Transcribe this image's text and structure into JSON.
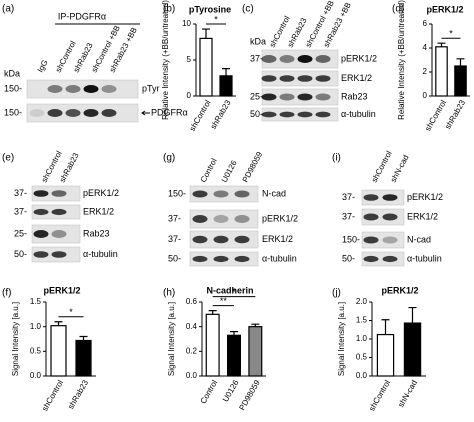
{
  "blots": [
    {
      "panel": "(a)",
      "header": "IP-PDGFRα",
      "kda": "kDa",
      "lanes": [
        "IgG",
        "shControl",
        "shRab23",
        "shControl +BB",
        "shRab23 +BB"
      ],
      "rows": [
        {
          "mw": "150-",
          "label": "pTyr"
        },
        {
          "mw": "150-",
          "label": "PDGFRα"
        }
      ]
    },
    {
      "panel": "(c)",
      "kda": "kDa",
      "lanes": [
        "shControl",
        "shRab23",
        "shControl +BB",
        "shRab23 +BB"
      ],
      "rows": [
        {
          "mw": "37-",
          "label": "pERK1/2"
        },
        {
          "mw": "",
          "label": "ERK1/2"
        },
        {
          "mw": "25-",
          "label": "Rab23"
        },
        {
          "mw": "50-",
          "label": "α-tubulin"
        }
      ]
    },
    {
      "panel": "(e)",
      "lanes": [
        "shControl",
        "shRab23"
      ],
      "rows": [
        {
          "mw": "37-",
          "label": "pERK1/2"
        },
        {
          "mw": "37-",
          "label": "ERK1/2"
        },
        {
          "mw": "25-",
          "label": "Rab23"
        },
        {
          "mw": "50-",
          "label": "α-tubulin"
        }
      ]
    },
    {
      "panel": "(g)",
      "lanes": [
        "Control",
        "U0126",
        "PD98059"
      ],
      "rows": [
        {
          "mw": "150-",
          "label": "N-cad"
        },
        {
          "mw": "37-",
          "label": "pERK1/2"
        },
        {
          "mw": "37-",
          "label": "ERK1/2"
        },
        {
          "mw": "50-",
          "label": "α-tubulin"
        }
      ]
    },
    {
      "panel": "(i)",
      "lanes": [
        "shControl",
        "shN-cad"
      ],
      "rows": [
        {
          "mw": "37-",
          "label": "pERK1/2"
        },
        {
          "mw": "37-",
          "label": "ERK1/2"
        },
        {
          "mw": "150-",
          "label": "N-cad"
        },
        {
          "mw": "50-",
          "label": "α-tubulin"
        }
      ]
    }
  ],
  "chart_data": [
    {
      "type": "bar",
      "panel": "(b)",
      "title": "pTyrosine",
      "ylabel": "Relative Intensity (+BB/untreated)",
      "categories": [
        "shControl",
        "shRab23"
      ],
      "values": [
        8,
        2.8
      ],
      "errors": [
        1.3,
        1
      ],
      "colors": [
        "#ffffff",
        "#000000"
      ],
      "ylim": [
        0,
        10
      ],
      "yticks": [
        0,
        5,
        10
      ],
      "annotations": [
        "*"
      ]
    },
    {
      "type": "bar",
      "panel": "(d)",
      "title": "pERK1/2",
      "ylabel": "Relative Intensity (+BB/untreated)",
      "categories": [
        "shControl",
        "shRab23"
      ],
      "values": [
        4.1,
        2.5
      ],
      "errors": [
        0.3,
        0.6
      ],
      "colors": [
        "#ffffff",
        "#000000"
      ],
      "ylim": [
        0,
        6
      ],
      "yticks": [
        0,
        2,
        4,
        6
      ],
      "annotations": [
        "*"
      ]
    },
    {
      "type": "bar",
      "panel": "(f)",
      "title": "pERK1/2",
      "ylabel": "Signal Intensity [a.u.]",
      "categories": [
        "shControl",
        "shRab23"
      ],
      "values": [
        1.02,
        0.72
      ],
      "errors": [
        0.08,
        0.08
      ],
      "colors": [
        "#ffffff",
        "#000000"
      ],
      "ylim": [
        0,
        1.5
      ],
      "yticks": [
        {
          "value": 0,
          "label": "0.0"
        },
        0.5,
        {
          "value": 1,
          "label": "1.0"
        },
        1.5
      ],
      "annotations": [
        "*"
      ]
    },
    {
      "type": "bar",
      "panel": "(h)",
      "title": "N-cadherin",
      "ylabel": "Signal Intensity [a.u.]",
      "categories": [
        "Control",
        "U0126",
        "PD98059"
      ],
      "values": [
        0.5,
        0.33,
        0.4
      ],
      "errors": [
        0.03,
        0.03,
        0.02
      ],
      "colors": [
        "#ffffff",
        "#000000",
        "#888888"
      ],
      "ylim": [
        0,
        0.6
      ],
      "yticks": [
        {
          "value": 0,
          "label": "0.0"
        },
        0.2,
        0.4,
        0.6
      ],
      "annotations": [
        "**",
        "*"
      ]
    },
    {
      "type": "bar",
      "panel": "(j)",
      "title": "pERK1/2",
      "ylabel": "Signal Intensity [a.u.]",
      "categories": [
        "shControl",
        "shN-cad"
      ],
      "values": [
        1.12,
        1.43
      ],
      "errors": [
        0.4,
        0.42
      ],
      "colors": [
        "#ffffff",
        "#000000"
      ],
      "ylim": [
        0,
        2
      ],
      "yticks": [
        {
          "value": 0,
          "label": "0.0"
        },
        0.5,
        {
          "value": 1,
          "label": "1.0"
        },
        1.5,
        {
          "value": 2,
          "label": "2.0"
        }
      ],
      "annotations": []
    }
  ]
}
